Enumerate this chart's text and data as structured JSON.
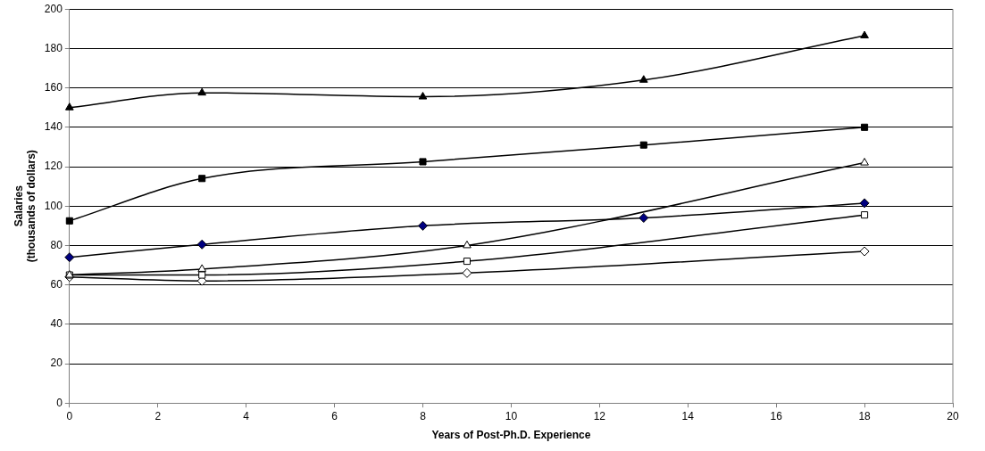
{
  "chart_data": {
    "type": "line",
    "xlabel": "Years of Post-Ph.D. Experience",
    "ylabel": "Salaries\n(thousands of dollars)",
    "xlim": [
      0,
      20
    ],
    "xticks": [
      0,
      2,
      4,
      6,
      8,
      10,
      12,
      14,
      16,
      18,
      20
    ],
    "ylim": [
      0,
      200
    ],
    "yticks": [
      0,
      20,
      40,
      60,
      80,
      100,
      120,
      140,
      160,
      180,
      200
    ],
    "grid": "y",
    "legend": false,
    "series": [
      {
        "x": [
          0,
          3,
          8,
          13,
          18
        ],
        "values": [
          150,
          157.5,
          155.5,
          164,
          186.5
        ],
        "color": "#000000",
        "colors": [
          "#000000",
          "#000000",
          "#000000",
          "#000000",
          "#000000"
        ],
        "marker": "triangle"
      },
      {
        "x": [
          0,
          3,
          8,
          13,
          18
        ],
        "values": [
          92.5,
          114,
          122.5,
          131,
          140
        ],
        "color": "#000000",
        "colors": [
          "#000000",
          "#000000",
          "#000000",
          "#000000",
          "#000000"
        ],
        "marker": "square"
      },
      {
        "x": [
          0,
          3,
          8,
          13,
          18
        ],
        "values": [
          74,
          80.5,
          90,
          94,
          101.5
        ],
        "color": "#000000",
        "colors": [
          "#000080",
          "#000080",
          "#000080",
          "#000080",
          "#000080"
        ],
        "marker": "diamond"
      },
      {
        "x": [
          0,
          3,
          9,
          18
        ],
        "values": [
          65,
          68,
          80,
          122
        ],
        "color": "#000000",
        "colors": [
          "#ffffff",
          "#ffffff",
          "#ffffff",
          "#ffffff"
        ],
        "marker": "triangle"
      },
      {
        "x": [
          0,
          3,
          9,
          18
        ],
        "values": [
          65,
          65,
          72,
          95.5
        ],
        "color": "#000000",
        "colors": [
          "#ffffff",
          "#ffffff",
          "#ffffff",
          "#ffffff"
        ],
        "marker": "square"
      },
      {
        "x": [
          0,
          3,
          9,
          18
        ],
        "values": [
          64,
          62,
          66,
          77
        ],
        "color": "#000000",
        "colors": [
          "#ffffff",
          "#ffffff",
          "#ffffff",
          "#ffffff"
        ],
        "marker": "diamond"
      }
    ]
  }
}
